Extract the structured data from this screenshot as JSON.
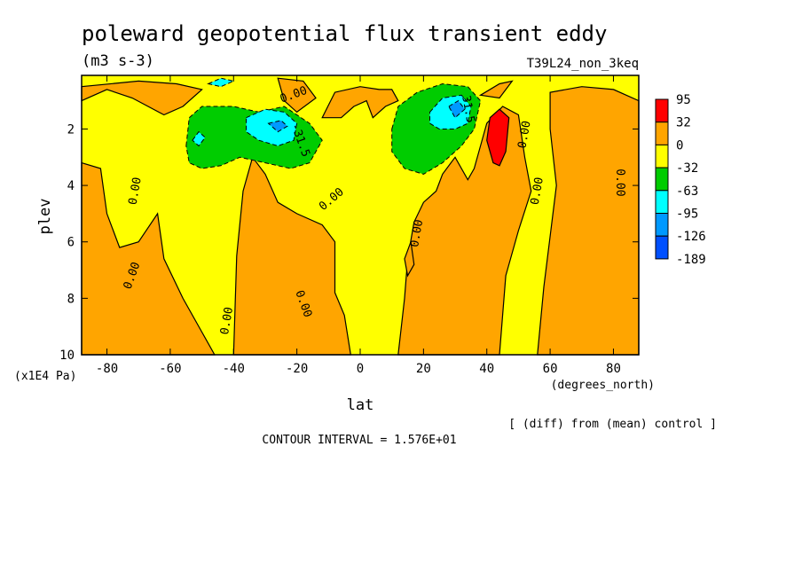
{
  "title": "poleward geopotential flux transient eddy",
  "units": "(m3 s-3)",
  "run_label": "T39L24_non_3keq",
  "diff_note": "[ (diff) from (mean) control ]",
  "contour_interval": "CONTOUR INTERVAL = 1.576E+01",
  "chart_data": {
    "type": "heatmap",
    "title": "poleward geopotential flux transient eddy",
    "xlabel": "lat",
    "xunits": "(degrees_north)",
    "ylabel": "plev",
    "yunits": "(x1E4 Pa)",
    "xlim": [
      -88,
      88
    ],
    "ylim": [
      10,
      0.1
    ],
    "y_inverted": true,
    "x_ticks": [
      -80,
      -60,
      -40,
      -20,
      0,
      20,
      40,
      60,
      80
    ],
    "y_ticks": [
      2,
      4,
      6,
      8,
      10
    ],
    "legend": {
      "placement": "right",
      "labels": [
        "95",
        "32",
        "0",
        "-32",
        "-63",
        "-95",
        "-126",
        "-189"
      ],
      "colors": [
        "#ff0000",
        "#ffa500",
        "#ffff00",
        "#00cc00",
        "#00ffff",
        "#0099ff",
        "#0050ff"
      ]
    },
    "contour_labels": [
      {
        "text": "0.00",
        "lat": -71,
        "plev": 4.2,
        "angle": -80
      },
      {
        "text": "0.00",
        "lat": -72,
        "plev": 7.2,
        "angle": -70
      },
      {
        "text": "0.00",
        "lat": -42,
        "plev": 8.8,
        "angle": -80
      },
      {
        "text": "0.00",
        "lat": -18,
        "plev": 8.2,
        "angle": 70
      },
      {
        "text": "0.00",
        "lat": -9,
        "plev": 4.5,
        "angle": -40
      },
      {
        "text": "0.00",
        "lat": -21,
        "plev": 0.8,
        "angle": -20
      },
      {
        "text": "-31.5",
        "lat": -19,
        "plev": 2.4,
        "angle": 70
      },
      {
        "text": "31.5",
        "lat": 34,
        "plev": 1.3,
        "angle": 80
      },
      {
        "text": "0.00",
        "lat": 52,
        "plev": 2.2,
        "angle": -80
      },
      {
        "text": "0.00",
        "lat": 18,
        "plev": 5.7,
        "angle": -80
      },
      {
        "text": "0.00",
        "lat": 56,
        "plev": 4.2,
        "angle": -80
      },
      {
        "text": "0.00",
        "lat": 82,
        "plev": 3.9,
        "angle": 90
      }
    ],
    "regions": [
      {
        "level": 32,
        "points": [
          [
            -88,
            1
          ],
          [
            -80,
            0.6
          ],
          [
            -72,
            0.9
          ],
          [
            -62,
            1.5
          ],
          [
            -56,
            1.2
          ],
          [
            -50,
            0.6
          ],
          [
            -58,
            0.4
          ],
          [
            -70,
            0.3
          ],
          [
            -88,
            0.5
          ]
        ]
      },
      {
        "level": 32,
        "points": [
          [
            -88,
            3.2
          ],
          [
            -82,
            3.4
          ],
          [
            -80,
            5.0
          ],
          [
            -76,
            6.2
          ],
          [
            -70,
            6.0
          ],
          [
            -64,
            5.0
          ],
          [
            -62,
            6.6
          ],
          [
            -56,
            8.0
          ],
          [
            -50,
            9.2
          ],
          [
            -46,
            10
          ],
          [
            -88,
            10
          ]
        ]
      },
      {
        "level": 32,
        "points": [
          [
            -40,
            10
          ],
          [
            -39,
            6.5
          ],
          [
            -37,
            4.2
          ],
          [
            -34,
            3.0
          ],
          [
            -30,
            3.6
          ],
          [
            -26,
            4.6
          ],
          [
            -20,
            5.0
          ],
          [
            -12,
            5.4
          ],
          [
            -8,
            6.0
          ],
          [
            -8,
            7.8
          ],
          [
            -5,
            8.6
          ],
          [
            -3,
            10
          ]
        ]
      },
      {
        "level": 32,
        "points": [
          [
            -12,
            1.6
          ],
          [
            -8,
            0.7
          ],
          [
            0,
            0.5
          ],
          [
            6,
            0.6
          ],
          [
            10,
            0.6
          ],
          [
            12,
            1.0
          ],
          [
            8,
            1.2
          ],
          [
            4,
            1.6
          ],
          [
            2,
            1.0
          ],
          [
            -2,
            1.2
          ],
          [
            -6,
            1.6
          ]
        ]
      },
      {
        "level": 32,
        "points": [
          [
            -26,
            0.2
          ],
          [
            -18,
            0.3
          ],
          [
            -14,
            0.9
          ],
          [
            -20,
            1.4
          ],
          [
            -24,
            1.0
          ]
        ]
      },
      {
        "level": 32,
        "points": [
          [
            12,
            10
          ],
          [
            14,
            8.0
          ],
          [
            15,
            6.6
          ],
          [
            17,
            5.3
          ],
          [
            20,
            4.6
          ],
          [
            24,
            4.2
          ],
          [
            26,
            3.6
          ],
          [
            30,
            3.0
          ],
          [
            34,
            3.8
          ],
          [
            36,
            3.4
          ],
          [
            38,
            2.6
          ],
          [
            40,
            1.8
          ],
          [
            45,
            1.2
          ],
          [
            50,
            1.5
          ],
          [
            52,
            3.0
          ],
          [
            54,
            4.2
          ],
          [
            50,
            5.6
          ],
          [
            46,
            7.2
          ],
          [
            44,
            10
          ]
        ]
      },
      {
        "level": 32,
        "points": [
          [
            38,
            0.8
          ],
          [
            44,
            0.4
          ],
          [
            48,
            0.3
          ],
          [
            44,
            0.9
          ]
        ]
      },
      {
        "level": 32,
        "points": [
          [
            56,
            10
          ],
          [
            58,
            7.6
          ],
          [
            60,
            5.8
          ],
          [
            62,
            4.0
          ],
          [
            60,
            2.0
          ],
          [
            60,
            0.7
          ],
          [
            70,
            0.5
          ],
          [
            80,
            0.6
          ],
          [
            88,
            1.0
          ],
          [
            88,
            10
          ]
        ]
      },
      {
        "level": 32,
        "points": [
          [
            14,
            6.6
          ],
          [
            16,
            6.0
          ],
          [
            17,
            6.8
          ],
          [
            15,
            7.2
          ]
        ]
      },
      {
        "level": -32,
        "points": [
          [
            -55,
            2.6
          ],
          [
            -54,
            1.6
          ],
          [
            -50,
            1.2
          ],
          [
            -40,
            1.2
          ],
          [
            -32,
            1.4
          ],
          [
            -24,
            1.2
          ],
          [
            -16,
            1.8
          ],
          [
            -12,
            2.4
          ],
          [
            -16,
            3.2
          ],
          [
            -22,
            3.4
          ],
          [
            -30,
            3.2
          ],
          [
            -38,
            3.0
          ],
          [
            -44,
            3.3
          ],
          [
            -50,
            3.4
          ],
          [
            -54,
            3.2
          ]
        ]
      },
      {
        "level": -32,
        "points": [
          [
            10,
            2.0
          ],
          [
            12,
            1.2
          ],
          [
            18,
            0.7
          ],
          [
            26,
            0.4
          ],
          [
            34,
            0.5
          ],
          [
            38,
            1.0
          ],
          [
            36,
            2.0
          ],
          [
            32,
            2.6
          ],
          [
            26,
            3.2
          ],
          [
            20,
            3.6
          ],
          [
            14,
            3.4
          ],
          [
            10,
            2.8
          ]
        ]
      },
      {
        "level": -63,
        "points": [
          [
            -36,
            1.6
          ],
          [
            -30,
            1.3
          ],
          [
            -24,
            1.4
          ],
          [
            -20,
            1.8
          ],
          [
            -21,
            2.4
          ],
          [
            -26,
            2.6
          ],
          [
            -32,
            2.4
          ],
          [
            -36,
            2.1
          ]
        ]
      },
      {
        "level": -63,
        "points": [
          [
            -53,
            2.4
          ],
          [
            -51,
            2.1
          ],
          [
            -49,
            2.3
          ],
          [
            -51,
            2.6
          ]
        ]
      },
      {
        "level": -63,
        "points": [
          [
            22,
            1.4
          ],
          [
            26,
            0.9
          ],
          [
            32,
            0.8
          ],
          [
            35,
            1.2
          ],
          [
            34,
            1.8
          ],
          [
            30,
            2.0
          ],
          [
            25,
            2.0
          ],
          [
            22,
            1.8
          ]
        ]
      },
      {
        "level": -63,
        "points": [
          [
            -48,
            0.4
          ],
          [
            -44,
            0.2
          ],
          [
            -40,
            0.3
          ],
          [
            -44,
            0.5
          ]
        ]
      },
      {
        "level": -95,
        "points": [
          [
            -29,
            1.8
          ],
          [
            -25,
            1.7
          ],
          [
            -23,
            1.9
          ],
          [
            -26,
            2.1
          ]
        ]
      },
      {
        "level": -95,
        "points": [
          [
            28,
            1.2
          ],
          [
            31,
            1.0
          ],
          [
            33,
            1.3
          ],
          [
            30,
            1.6
          ]
        ]
      },
      {
        "level": 95,
        "points": [
          [
            40,
            2.4
          ],
          [
            41,
            1.6
          ],
          [
            44,
            1.3
          ],
          [
            47,
            1.6
          ],
          [
            46,
            2.8
          ],
          [
            44,
            3.3
          ],
          [
            42,
            3.2
          ]
        ]
      }
    ]
  }
}
